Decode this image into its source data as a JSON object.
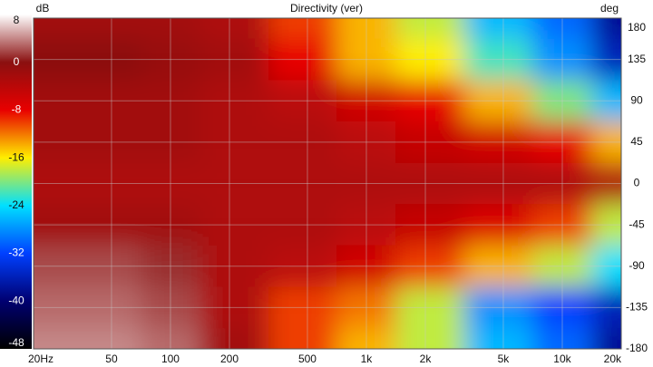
{
  "chart_data": {
    "type": "heatmap",
    "title": "Directivity (ver)",
    "colorbar_label": "dB",
    "y_label": "deg",
    "x_scale": "log",
    "x": [
      20,
      50,
      100,
      200,
      500,
      1000,
      2000,
      5000,
      10000,
      20000
    ],
    "y": [
      180,
      135,
      90,
      45,
      0,
      -45,
      -90,
      -135,
      -180
    ],
    "z": [
      [
        -2,
        -2,
        -2,
        -3,
        -10,
        -14,
        -18,
        -26,
        -30,
        -38
      ],
      [
        0,
        0,
        -1,
        -2,
        -8,
        -14,
        -16,
        -22,
        -28,
        -36
      ],
      [
        -2,
        -2,
        -2,
        -3,
        -4,
        -6,
        -8,
        -14,
        -20,
        -26
      ],
      [
        -2,
        -2,
        -2,
        -3,
        -3,
        -4,
        -5,
        -6,
        -8,
        -14
      ],
      [
        -3,
        -3,
        -3,
        -3,
        -3,
        -3,
        -3,
        -3,
        -3,
        -3
      ],
      [
        -2,
        -2,
        -2,
        -3,
        -3,
        -4,
        -5,
        -7,
        -10,
        -18
      ],
      [
        2,
        2,
        1,
        -3,
        -4,
        -6,
        -10,
        -14,
        -18,
        -24
      ],
      [
        3,
        3,
        2,
        -3,
        -10,
        -12,
        -18,
        -28,
        -32,
        -36
      ],
      [
        4,
        4,
        3,
        -2,
        -10,
        -14,
        -18,
        -26,
        -30,
        -38
      ]
    ],
    "xlim": [
      20,
      20000
    ],
    "xticks": [
      {
        "value": 20,
        "label": "20Hz"
      },
      50,
      100,
      200,
      500,
      {
        "value": 1000,
        "label": "1k"
      },
      {
        "value": 2000,
        "label": "2k"
      },
      {
        "value": 5000,
        "label": "5k"
      },
      {
        "value": 10000,
        "label": "10k"
      },
      {
        "value": 20000,
        "label": "20k"
      }
    ],
    "ylim": [
      -180,
      180
    ],
    "yticks": [
      180,
      135,
      90,
      45,
      0,
      -45,
      -90,
      -135,
      -180
    ],
    "zlim": [
      -48,
      8
    ],
    "zticks": [
      8,
      0,
      -8,
      -16,
      -24,
      -32,
      -40,
      -48
    ],
    "colorscale": [
      "#ffffff",
      "#8b1010",
      "#e80000",
      "#ffee00",
      "#00e0ff",
      "#0040ff",
      "#000070",
      "#000000"
    ],
    "grid": true
  }
}
